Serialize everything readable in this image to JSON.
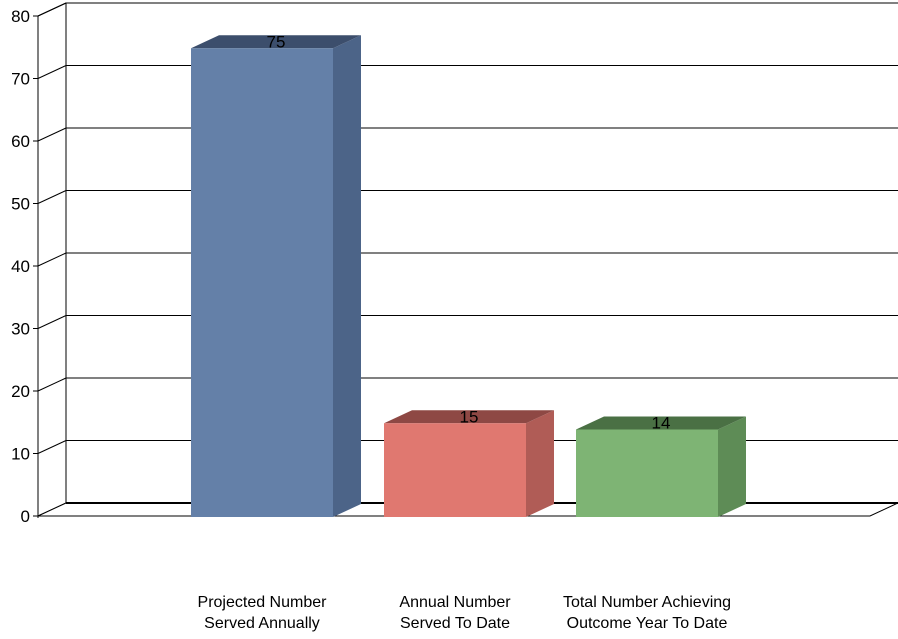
{
  "chart_data": {
    "type": "bar",
    "title": "",
    "xlabel": "",
    "ylabel": "",
    "categories": [
      "Projected Number\nServed Annually",
      "Annual Number\nServed To Date",
      "Total Number Achieving\nOutcome Year To Date"
    ],
    "values": [
      75,
      15,
      14
    ],
    "data_labels": [
      "75",
      "15",
      "14"
    ],
    "ylim": [
      0,
      80
    ],
    "yticks": [
      0,
      10,
      20,
      30,
      40,
      50,
      60,
      70,
      80
    ],
    "ytick_labels": [
      "0",
      "10",
      "20",
      "30",
      "40",
      "50",
      "60",
      "70",
      "80"
    ],
    "grid": true,
    "legend": "none",
    "style": "3d",
    "colors": [
      {
        "front": "#6480a8",
        "side": "#4c6488",
        "top": "#3c4e6c"
      },
      {
        "front": "#e07870",
        "side": "#b05c56",
        "top": "#8e4844"
      },
      {
        "front": "#7eb474",
        "side": "#5e8c56",
        "top": "#4a7044"
      }
    ]
  }
}
